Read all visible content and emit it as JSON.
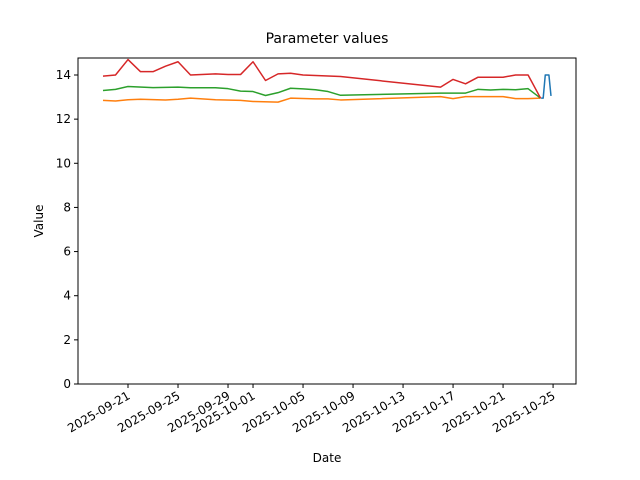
{
  "chart_data": {
    "type": "line",
    "title": "Parameter values",
    "x_label": "Date",
    "y_label": "Value",
    "xlim": [
      "2025-09-17",
      "2025-10-26T20:00"
    ],
    "xticks": [
      "2025-09-21",
      "2025-09-25",
      "2025-09-29",
      "2025-10-01",
      "2025-10-05",
      "2025-10-09",
      "2025-10-13",
      "2025-10-17",
      "2025-10-21",
      "2025-10-25"
    ],
    "ylim": [
      0,
      14.77
    ],
    "yticks": [
      0,
      2,
      4,
      6,
      8,
      10,
      12,
      14
    ],
    "grid": false,
    "series": [
      {
        "color": "#1f77b4",
        "x": [
          "2025-10-24T01:00",
          "2025-10-24T05:00",
          "2025-10-24T09:00",
          "2025-10-24T16:00",
          "2025-10-24T20:00"
        ],
        "values": [
          12.95,
          12.95,
          14.0,
          14.0,
          13.05
        ]
      },
      {
        "color": "#ff7f0e",
        "x": [
          "2025-09-19",
          "2025-09-20",
          "2025-09-21",
          "2025-09-22",
          "2025-09-24",
          "2025-09-25",
          "2025-09-26",
          "2025-09-28",
          "2025-09-30",
          "2025-10-01",
          "2025-10-03",
          "2025-10-04",
          "2025-10-06",
          "2025-10-07",
          "2025-10-08",
          "2025-10-16",
          "2025-10-17",
          "2025-10-18",
          "2025-10-21",
          "2025-10-22",
          "2025-10-23",
          "2025-10-24"
        ],
        "values": [
          12.85,
          12.82,
          12.88,
          12.9,
          12.87,
          12.9,
          12.95,
          12.88,
          12.85,
          12.8,
          12.77,
          12.95,
          12.92,
          12.92,
          12.87,
          13.02,
          12.93,
          13.02,
          13.02,
          12.93,
          12.93,
          12.95
        ]
      },
      {
        "color": "#2ca02c",
        "x": [
          "2025-09-19",
          "2025-09-20",
          "2025-09-21",
          "2025-09-23",
          "2025-09-25",
          "2025-09-26",
          "2025-09-28",
          "2025-09-29",
          "2025-09-30",
          "2025-10-01",
          "2025-10-02",
          "2025-10-03",
          "2025-10-04",
          "2025-10-05",
          "2025-10-06",
          "2025-10-07",
          "2025-10-08",
          "2025-10-16",
          "2025-10-18",
          "2025-10-19",
          "2025-10-20",
          "2025-10-21",
          "2025-10-22",
          "2025-10-23",
          "2025-10-24"
        ],
        "values": [
          13.3,
          13.35,
          13.48,
          13.43,
          13.45,
          13.42,
          13.42,
          13.38,
          13.27,
          13.25,
          13.07,
          13.2,
          13.4,
          13.37,
          13.33,
          13.25,
          13.08,
          13.18,
          13.18,
          13.35,
          13.32,
          13.35,
          13.33,
          13.38,
          12.95
        ]
      },
      {
        "color": "#d62728",
        "x": [
          "2025-09-19",
          "2025-09-20",
          "2025-09-21",
          "2025-09-22",
          "2025-09-23",
          "2025-09-24",
          "2025-09-25",
          "2025-09-26",
          "2025-09-28",
          "2025-09-29",
          "2025-09-30",
          "2025-10-01",
          "2025-10-02",
          "2025-10-03",
          "2025-10-04",
          "2025-10-05",
          "2025-10-08",
          "2025-10-16",
          "2025-10-17",
          "2025-10-18",
          "2025-10-19",
          "2025-10-21",
          "2025-10-22",
          "2025-10-23",
          "2025-10-24"
        ],
        "values": [
          13.95,
          14.0,
          14.7,
          14.15,
          14.15,
          14.4,
          14.6,
          14.0,
          14.05,
          14.02,
          14.02,
          14.6,
          13.75,
          14.05,
          14.08,
          14.0,
          13.93,
          13.45,
          13.8,
          13.6,
          13.9,
          13.9,
          14.0,
          14.0,
          12.95
        ]
      }
    ]
  }
}
